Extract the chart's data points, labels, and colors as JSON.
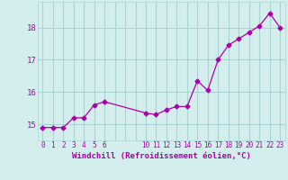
{
  "x": [
    0,
    1,
    2,
    3,
    4,
    5,
    6,
    10,
    11,
    12,
    13,
    14,
    15,
    16,
    17,
    18,
    19,
    20,
    21,
    22,
    23
  ],
  "y": [
    14.9,
    14.9,
    14.9,
    15.2,
    15.2,
    15.6,
    15.7,
    15.35,
    15.3,
    15.45,
    15.55,
    15.55,
    16.35,
    16.05,
    17.0,
    17.45,
    17.65,
    17.85,
    18.05,
    18.45,
    18.0
  ],
  "line_color": "#aa00aa",
  "marker": "D",
  "marker_size": 2.5,
  "bg_color": "#d4eeee",
  "grid_color": "#aad4d4",
  "xlabel": "Windchill (Refroidissement éolien,°C)",
  "xlabel_color": "#aa00aa",
  "tick_color": "#aa00aa",
  "xlim": [
    -0.5,
    23.5
  ],
  "ylim": [
    14.5,
    18.8
  ],
  "yticks": [
    15,
    16,
    17,
    18
  ],
  "xtick_labels": [
    "0",
    "1",
    "2",
    "3",
    "4",
    "5",
    "6",
    "",
    "",
    "",
    "10",
    "11",
    "12",
    "13",
    "14",
    "15",
    "16",
    "17",
    "18",
    "19",
    "20",
    "21",
    "22",
    "23"
  ],
  "xtick_positions": [
    0,
    1,
    2,
    3,
    4,
    5,
    6,
    7,
    8,
    9,
    10,
    11,
    12,
    13,
    14,
    15,
    16,
    17,
    18,
    19,
    20,
    21,
    22,
    23
  ]
}
